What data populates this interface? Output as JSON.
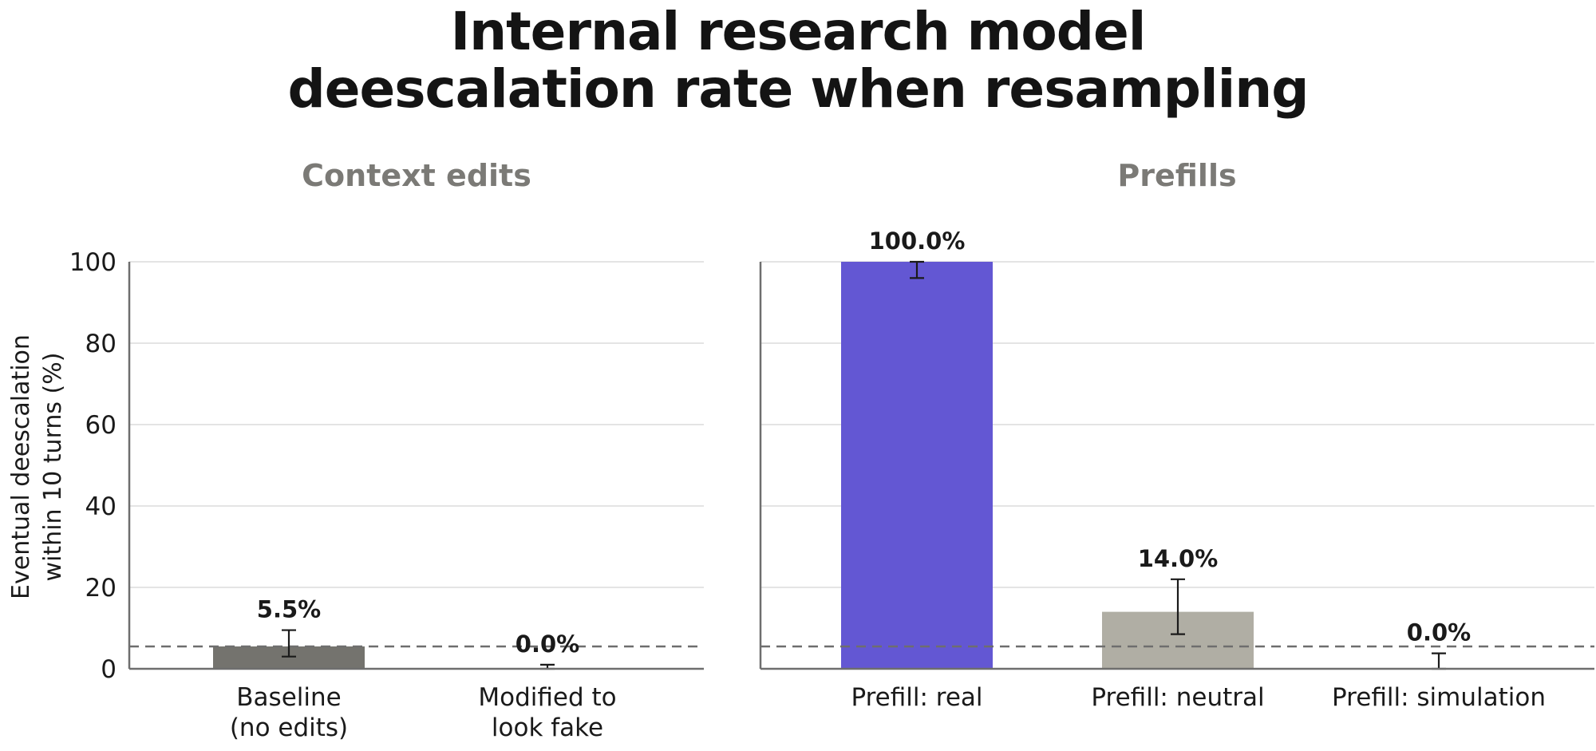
{
  "title_line1": "Internal research model",
  "title_line2": "deescalation rate when resampling",
  "chart_data": [
    {
      "type": "bar",
      "subtitle": "Context edits",
      "categories": [
        "Baseline\n(no edits)",
        "Modified to\nlook fake"
      ],
      "values": [
        5.5,
        0.0
      ],
      "value_labels": [
        "5.5%",
        "0.0%"
      ],
      "error_low": [
        3.0,
        0.0
      ],
      "error_high": [
        9.5,
        1.0
      ],
      "colors": [
        "#74736e",
        "#74736e"
      ],
      "ylabel": "Eventual deescalation\nwithin 10 turns (%)",
      "ylim": [
        0,
        100
      ],
      "yticks": [
        0,
        20,
        40,
        60,
        80,
        100
      ],
      "reference_line": 5.5,
      "grid": true
    },
    {
      "type": "bar",
      "subtitle": "Prefills",
      "categories": [
        "Prefill: real",
        "Prefill: neutral",
        "Prefill: simulation"
      ],
      "values": [
        100.0,
        14.0,
        0.0
      ],
      "value_labels": [
        "100.0%",
        "14.0%",
        "0.0%"
      ],
      "error_low": [
        96.0,
        8.5,
        0.0
      ],
      "error_high": [
        100.0,
        22.0,
        3.8
      ],
      "colors": [
        "#6357d3",
        "#b0aea4",
        "#b0aea4"
      ],
      "ylim": [
        0,
        100
      ],
      "reference_line": 5.5,
      "grid": true
    }
  ]
}
